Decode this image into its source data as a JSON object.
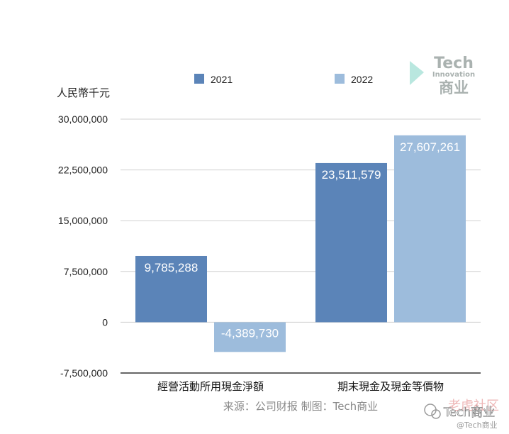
{
  "chart_data": {
    "type": "bar",
    "unit_label": "人民幣千元",
    "categories": [
      "經營活動所用現金淨額",
      "期末現金及現金等價物"
    ],
    "series": [
      {
        "name": "2021",
        "color": "#5b84b8",
        "values": [
          9785288,
          23511579
        ]
      },
      {
        "name": "2022",
        "color": "#9dbcdc",
        "values": [
          -4389730,
          27607261
        ]
      }
    ],
    "data_labels": [
      [
        "9,785,288",
        "23,511,579"
      ],
      [
        "-4,389,730",
        "27,607,261"
      ]
    ],
    "ylim": [
      -7500000,
      30000000
    ],
    "yticks": [
      30000000,
      22500000,
      15000000,
      7500000,
      0,
      -7500000
    ],
    "ytick_labels": [
      "30,000,000",
      "22,500,000",
      "15,000,000",
      "7,500,000",
      "0",
      "-7,500,000"
    ],
    "grid": true,
    "legend_position": "top",
    "source": "来源：公司财报 制图：Tech商业"
  },
  "watermarks": {
    "brand_top": "Tech",
    "brand_sub": "Innovation",
    "brand_cn": "商业",
    "brand_color": "#aab2b0",
    "accent_color": "#7fd3c4",
    "account_name": "Tech商业",
    "account_handle": "@Tech商业",
    "community": "老虎社区"
  }
}
